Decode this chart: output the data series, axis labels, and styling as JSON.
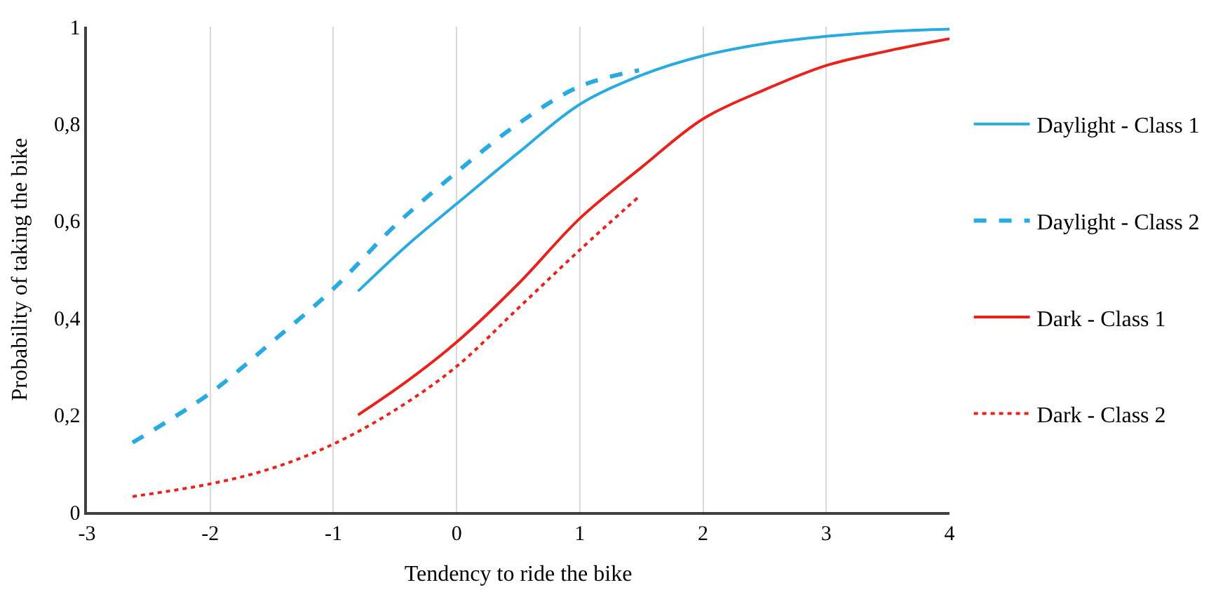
{
  "chart_data": {
    "type": "line",
    "xlabel": "Tendency to ride the bike",
    "ylabel": "Probability of taking the bike",
    "xlim": [
      -3,
      4
    ],
    "xticks": [
      -3,
      -2,
      -1,
      0,
      1,
      2,
      3,
      4
    ],
    "ylim": [
      0,
      1
    ],
    "yticks": [
      0,
      {
        "value": 0.2,
        "label": "0,2"
      },
      {
        "value": 0.4,
        "label": "0,4"
      },
      {
        "value": 0.6,
        "label": "0,6"
      },
      {
        "value": 0.8,
        "label": "0,8"
      },
      1
    ],
    "grid": "x",
    "legend": "right",
    "marker": "none",
    "series": [
      {
        "name": "Daylight - Class 1",
        "color": "#29abe2",
        "line_style": "solid",
        "x": [
          -0.8,
          -0.4,
          0,
          0.5,
          1,
          1.5,
          2,
          2.5,
          3,
          3.5,
          4
        ],
        "values": [
          0.455,
          0.55,
          0.635,
          0.74,
          0.84,
          0.9,
          0.94,
          0.965,
          0.98,
          0.99,
          0.995
        ]
      },
      {
        "name": "Daylight - Class 2",
        "color": "#29abe2",
        "line_style": "dashed",
        "x": [
          -2.63,
          -2,
          -1.5,
          -1,
          -0.5,
          0,
          0.5,
          1,
          1.48
        ],
        "values": [
          0.143,
          0.245,
          0.35,
          0.46,
          0.59,
          0.7,
          0.8,
          0.877,
          0.91
        ]
      },
      {
        "name": "Dark - Class 1",
        "color": "#e8221c",
        "line_style": "solid",
        "x": [
          -0.8,
          -0.4,
          0,
          0.5,
          1,
          1.5,
          2,
          2.5,
          3,
          3.5,
          4
        ],
        "values": [
          0.2,
          0.27,
          0.35,
          0.47,
          0.605,
          0.71,
          0.81,
          0.87,
          0.92,
          0.95,
          0.975
        ]
      },
      {
        "name": "Dark - Class 2",
        "color": "#e8221c",
        "line_style": "dotted",
        "x": [
          -2.63,
          -2,
          -1.5,
          -1,
          -0.5,
          0,
          0.5,
          1,
          1.48
        ],
        "values": [
          0.032,
          0.058,
          0.09,
          0.14,
          0.21,
          0.3,
          0.42,
          0.54,
          0.65
        ]
      }
    ]
  }
}
